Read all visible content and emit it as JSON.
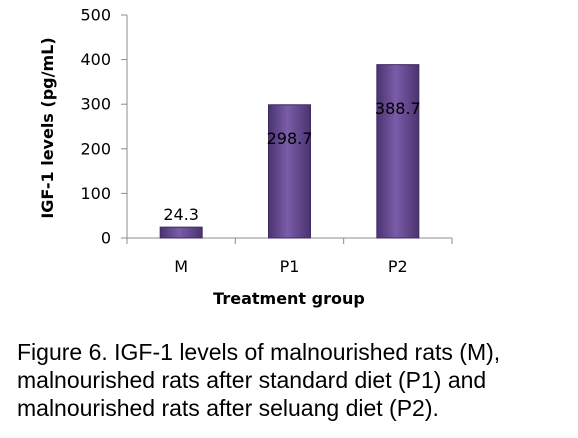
{
  "chart_data": {
    "type": "bar",
    "categories": [
      "M",
      "P1",
      "P2"
    ],
    "values": [
      24.3,
      298.7,
      388.7
    ],
    "data_labels": [
      "24.3",
      "298.7",
      "388.7"
    ],
    "xlabel": "Treatment group",
    "ylabel": "IGF-1 levels (pg/mL)",
    "ylim": [
      0,
      500
    ],
    "yticks": [
      "0",
      "100",
      "200",
      "300",
      "400",
      "500"
    ],
    "yticks_values": [
      0,
      100,
      200,
      300,
      400,
      500
    ],
    "grid": false,
    "legend": "none",
    "bar_color": "#6B4E97",
    "bar_edge_color": "#3F2A5F"
  },
  "caption": {
    "lines": [
      "Figure 6.   IGF-1 levels of malnourished rats (M),",
      "malnourished rats after standard diet (P1) and",
      "malnourished rats after seluang diet (P2)."
    ]
  }
}
